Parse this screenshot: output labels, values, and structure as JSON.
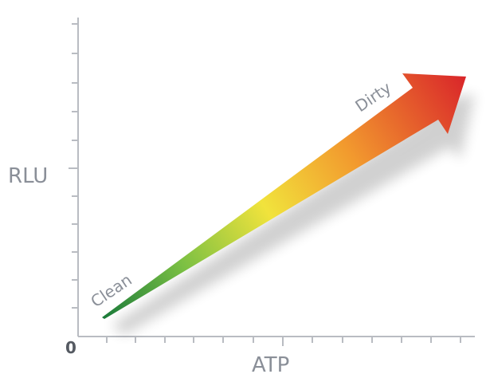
{
  "diagram": {
    "y_axis_label": "RLU",
    "x_axis_label": "ATP",
    "origin_label": "0",
    "start_label": "Clean",
    "end_label": "Dirty",
    "colors": {
      "axis": "#b9bcc2",
      "axis_text": "#8a8f98",
      "arrow_start": "#1a7a3a",
      "arrow_green": "#7bc043",
      "arrow_yellow": "#f1e33c",
      "arrow_orange": "#f29a2e",
      "arrow_end": "#d9252a"
    }
  }
}
